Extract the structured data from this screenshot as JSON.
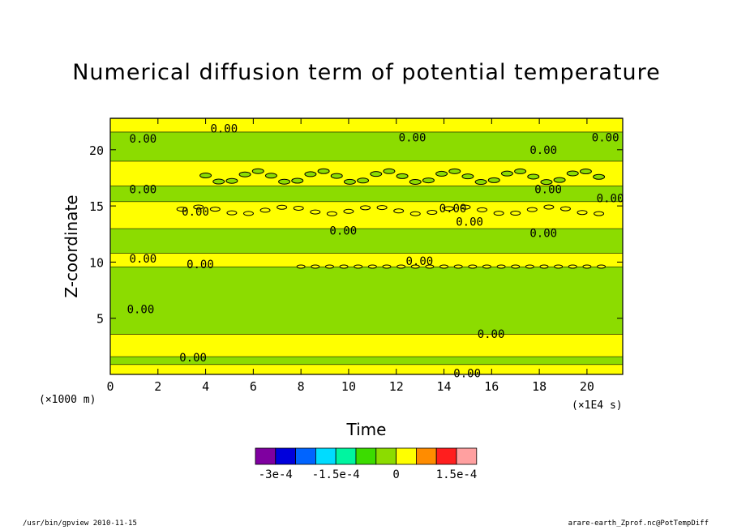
{
  "chart_data": {
    "type": "heatmap",
    "title": "Numerical diffusion term of potential temperature",
    "xlabel": "Time",
    "ylabel": "Z-coordinate",
    "x_unit": "(×1E4 s)",
    "y_unit": "(×1000 m)",
    "xlim": [
      0,
      21.5
    ],
    "ylim": [
      0,
      22.8
    ],
    "x_ticks": [
      "0",
      "2",
      "4",
      "6",
      "8",
      "10",
      "12",
      "14",
      "16",
      "18",
      "20"
    ],
    "y_ticks": [
      "5",
      "10",
      "15",
      "20"
    ],
    "contour_label": "0.00",
    "colorbar": {
      "colors": [
        "#7f00a0",
        "#0000dc",
        "#0064ff",
        "#00dcff",
        "#00f5a0",
        "#3cdc00",
        "#8cdc00",
        "#ffff00",
        "#ff8c00",
        "#ff1e1e",
        "#ffa0a0"
      ],
      "tick_labels": [
        "-3e-4",
        "-1.5e-4",
        "0",
        "1.5e-4"
      ]
    }
  },
  "footer": {
    "left": "/usr/bin/gpview   2010-11-15",
    "right": "arare-earth_Zprof.nc@PotTempDiff"
  }
}
